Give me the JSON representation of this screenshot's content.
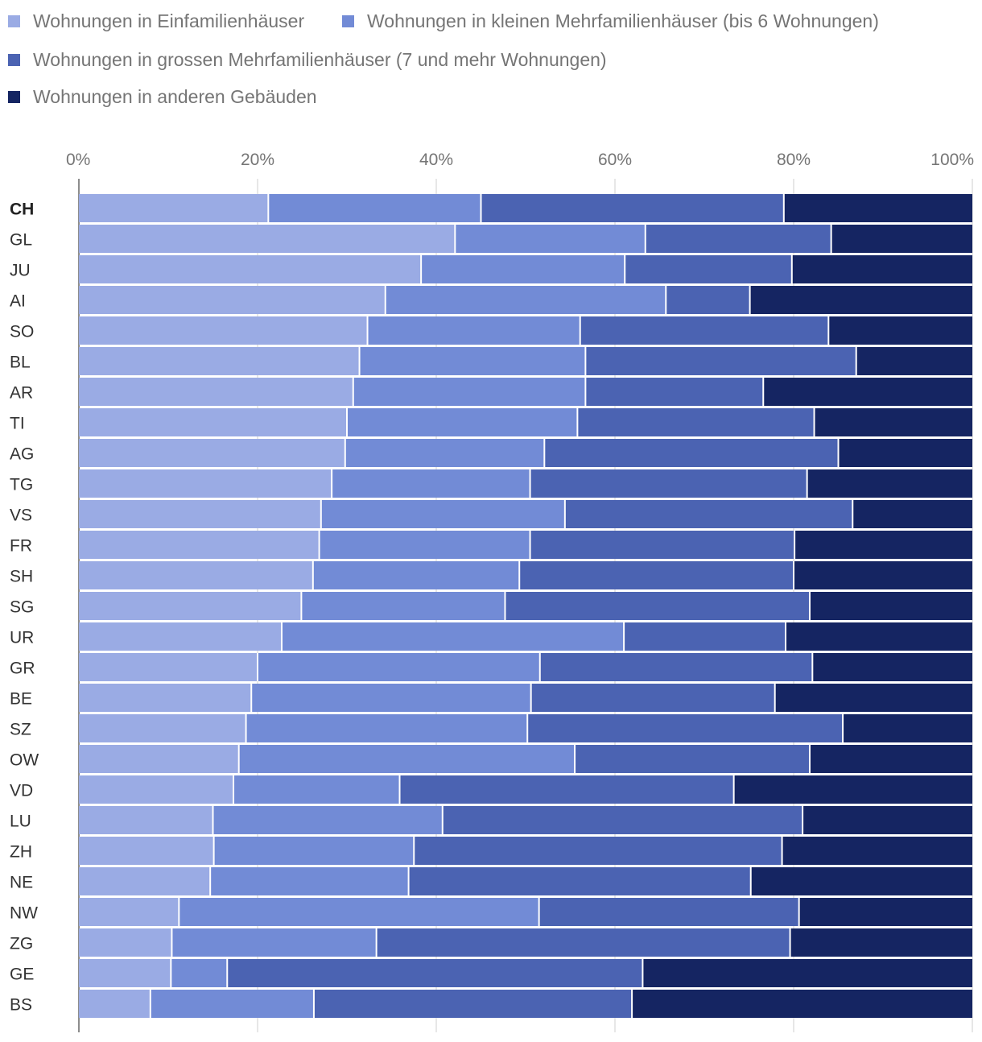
{
  "chart_data": {
    "type": "bar",
    "orientation": "horizontal",
    "stacked": true,
    "percent_stacked": true,
    "legend_position": "top",
    "grid": true,
    "xlim": [
      0,
      100
    ],
    "x_ticks": [
      "0%",
      "20%",
      "40%",
      "60%",
      "80%",
      "100%"
    ],
    "categories": [
      "CH",
      "GL",
      "JU",
      "AI",
      "SO",
      "BL",
      "AR",
      "TI",
      "AG",
      "TG",
      "VS",
      "FR",
      "SH",
      "SG",
      "UR",
      "GR",
      "BE",
      "SZ",
      "OW",
      "VD",
      "LU",
      "ZH",
      "NE",
      "NW",
      "ZG",
      "GE",
      "BS"
    ],
    "highlight_category": "CH",
    "series": [
      {
        "name": "Wohnungen in Einfamilienhäuser",
        "color": "#9aabe4",
        "values": [
          21.2,
          42.1,
          38.3,
          34.3,
          32.3,
          31.4,
          30.7,
          30.0,
          29.8,
          28.3,
          27.1,
          26.9,
          26.2,
          24.9,
          22.7,
          20.0,
          19.3,
          18.7,
          17.9,
          17.3,
          15.0,
          15.1,
          14.7,
          11.2,
          10.4,
          10.3,
          8.0
        ]
      },
      {
        "name": "Wohnungen in kleinen Mehrfamilienhäuser (bis 6 Wohnungen)",
        "color": "#728bd6",
        "values": [
          23.8,
          21.3,
          22.8,
          31.4,
          23.8,
          25.3,
          26.0,
          25.8,
          22.3,
          22.2,
          27.3,
          23.6,
          23.1,
          22.8,
          38.3,
          31.6,
          31.3,
          31.5,
          37.6,
          18.6,
          25.7,
          22.4,
          22.2,
          40.3,
          22.9,
          6.3,
          18.3
        ]
      },
      {
        "name": "Wohnungen in grossen Mehrfamilienhäuser (7 und mehr Wohnungen)",
        "color": "#4b63b2",
        "values": [
          33.9,
          20.8,
          18.7,
          9.4,
          27.8,
          30.3,
          19.9,
          26.5,
          32.9,
          31.0,
          32.2,
          29.6,
          30.7,
          34.1,
          18.1,
          30.5,
          27.3,
          35.3,
          26.3,
          37.4,
          40.3,
          41.2,
          38.3,
          29.1,
          46.3,
          46.5,
          35.6
        ]
      },
      {
        "name": "Wohnungen in anderen Gebäuden",
        "color": "#152562",
        "values": [
          21.1,
          15.8,
          20.2,
          24.9,
          16.1,
          13.0,
          23.4,
          17.7,
          15.0,
          18.5,
          13.4,
          19.9,
          20.0,
          18.2,
          20.9,
          17.9,
          22.1,
          14.5,
          18.2,
          26.7,
          19.0,
          21.3,
          24.8,
          19.4,
          20.4,
          36.9,
          38.1
        ]
      }
    ]
  }
}
